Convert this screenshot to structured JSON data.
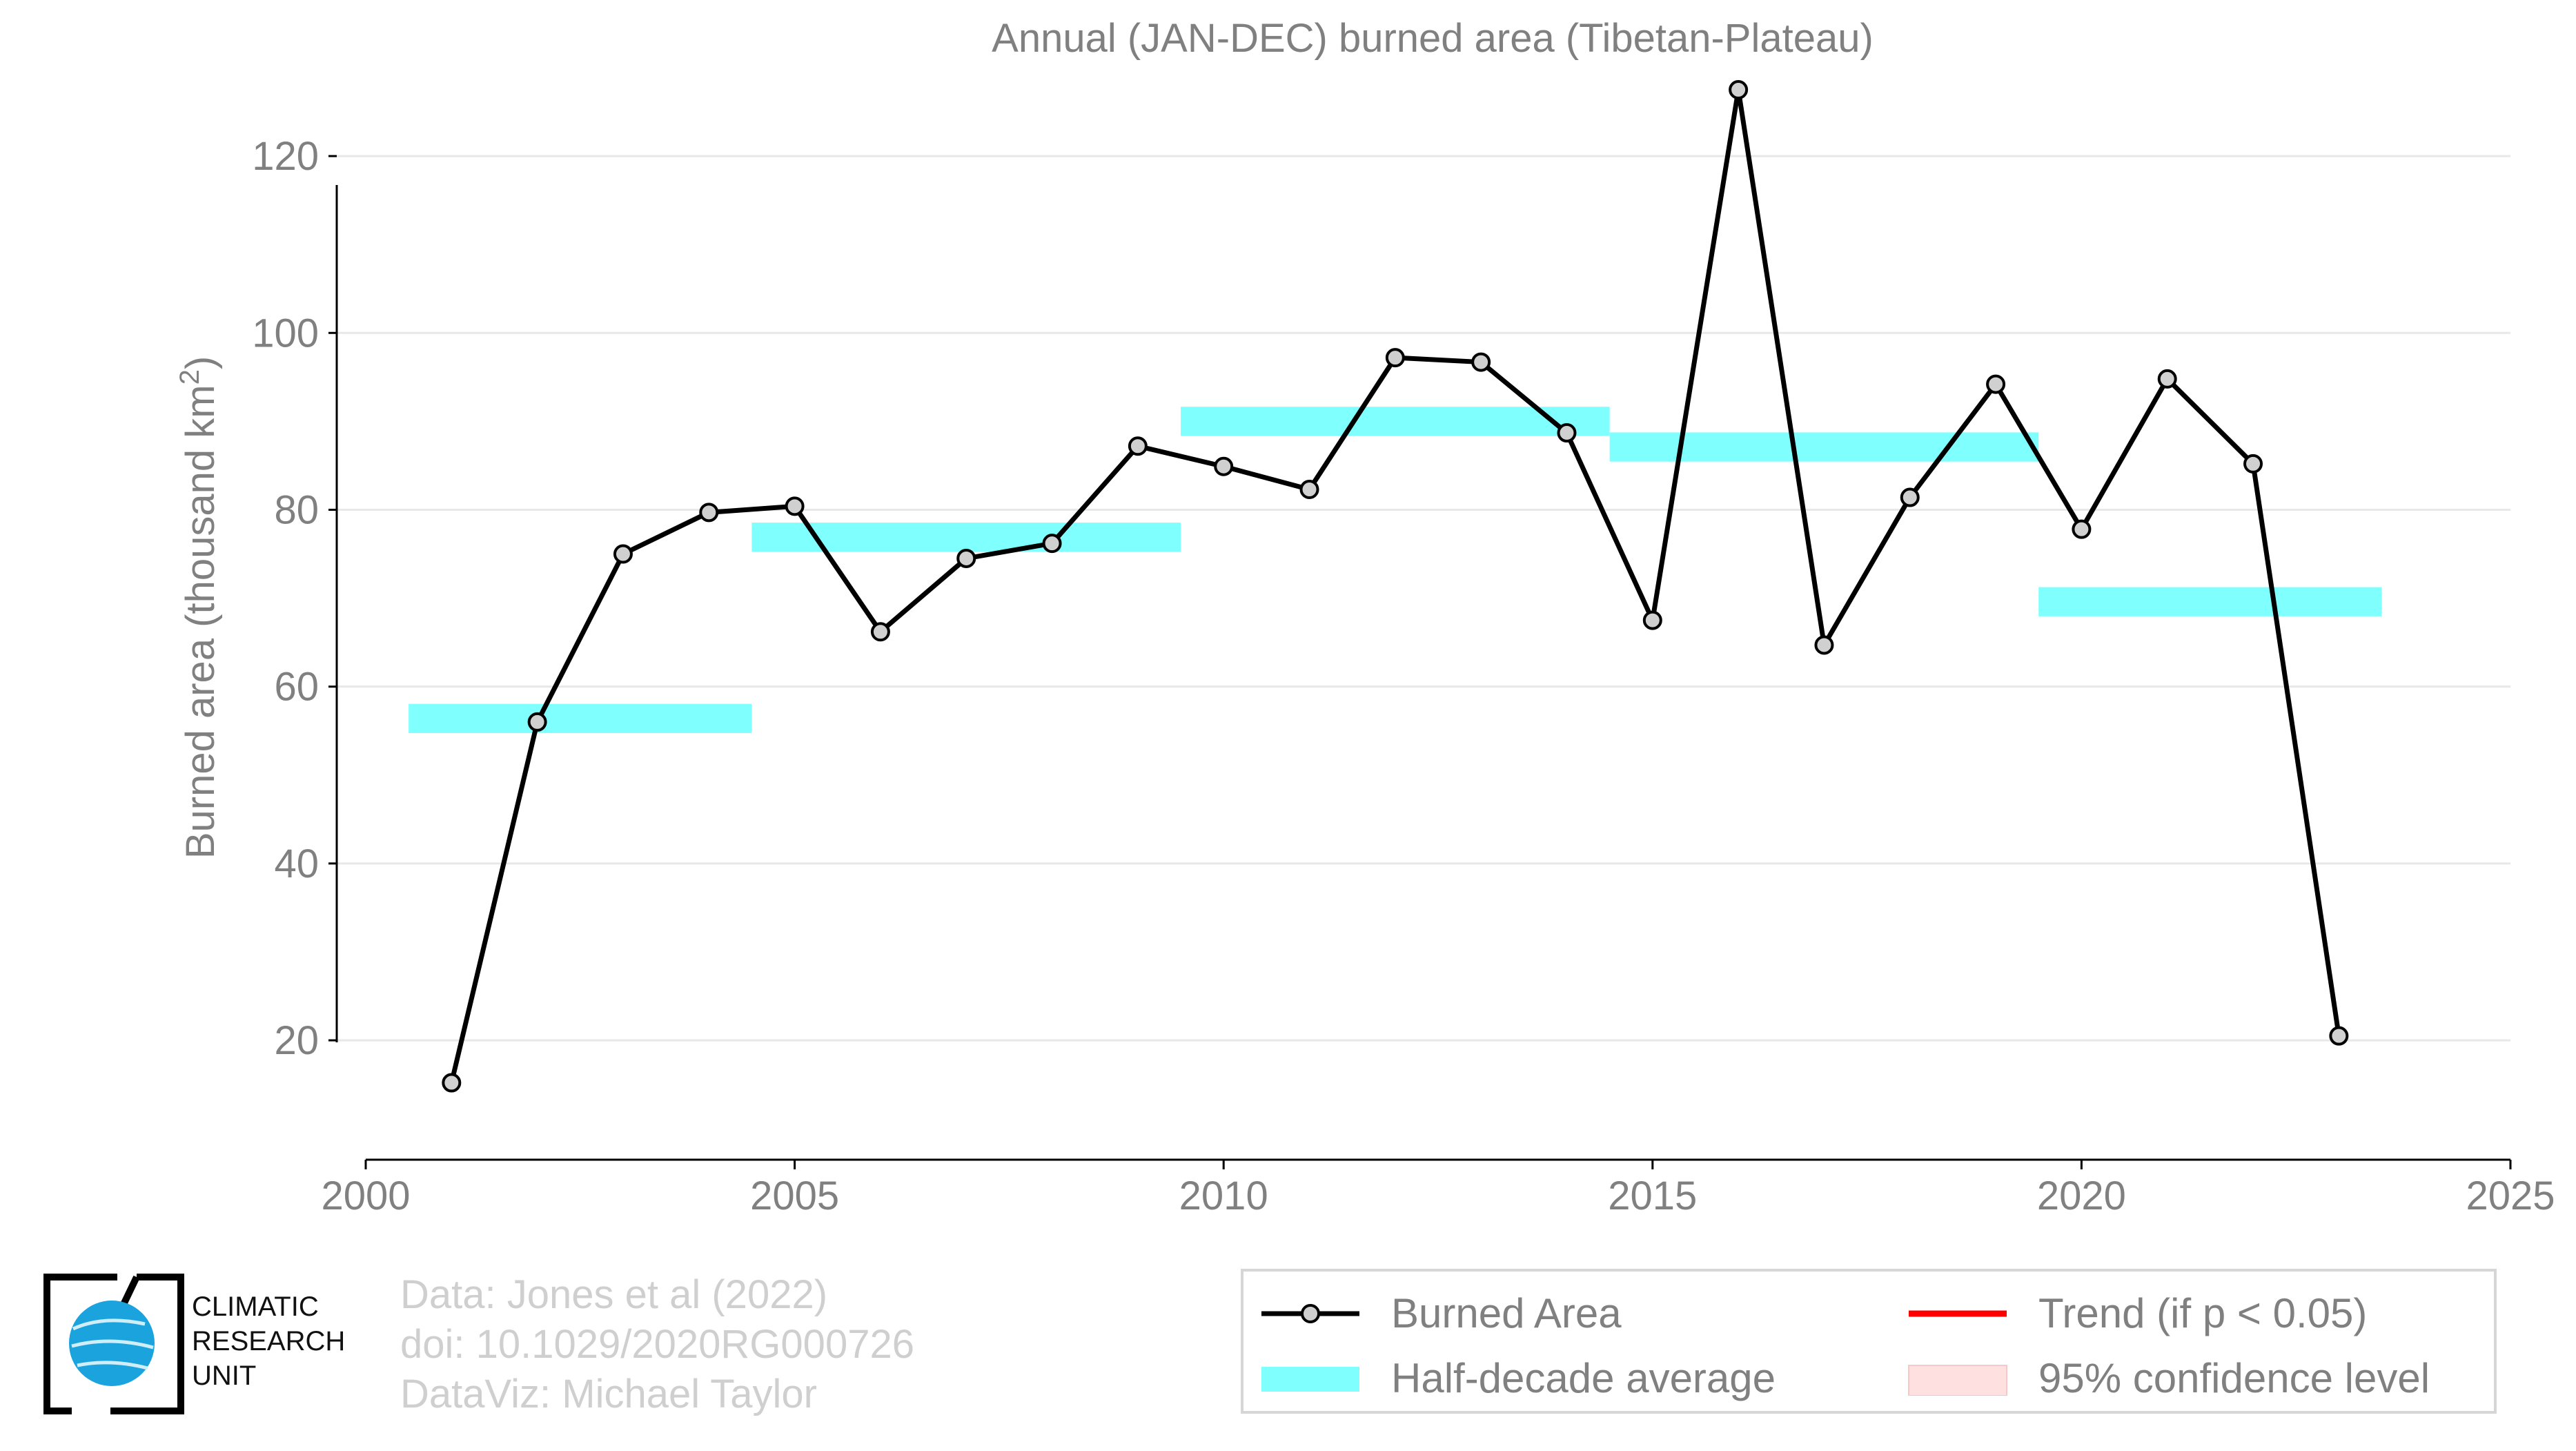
{
  "chart_data": {
    "type": "line",
    "title": "Annual (JAN-DEC) burned area (Tibetan-Plateau)",
    "ylabel_prefix": "Burned area (thousand km",
    "ylabel_sup": "2",
    "ylabel_suffix": ")",
    "xlim": [
      2000,
      2025
    ],
    "ylim": [
      6.5,
      130
    ],
    "xticks": [
      2000,
      2005,
      2010,
      2015,
      2020,
      2025
    ],
    "yticks": [
      20,
      40,
      60,
      80,
      100,
      120
    ],
    "grid": "horizontal",
    "legend_placement": "bottom-right",
    "series": [
      {
        "name": "Burned Area",
        "color": "#000000",
        "marker_color": "#d0d0d0",
        "x": [
          2001,
          2002,
          2003,
          2004,
          2005,
          2006,
          2007,
          2008,
          2009,
          2010,
          2011,
          2012,
          2013,
          2014,
          2015,
          2016,
          2017,
          2018,
          2019,
          2020,
          2021,
          2022,
          2023
        ],
        "y": [
          15.2,
          56.0,
          75.0,
          79.7,
          80.4,
          66.2,
          74.5,
          76.2,
          87.2,
          84.9,
          82.3,
          97.2,
          96.7,
          88.7,
          67.5,
          127.5,
          64.7,
          81.4,
          94.2,
          77.8,
          94.8,
          85.2,
          20.5
        ]
      }
    ],
    "half_decade_averages": [
      {
        "x0": 2000.5,
        "x1": 2004.5,
        "y": 56.4
      },
      {
        "x0": 2004.5,
        "x1": 2009.5,
        "y": 76.9
      },
      {
        "x0": 2009.5,
        "x1": 2014.5,
        "y": 90.0
      },
      {
        "x0": 2014.5,
        "x1": 2019.5,
        "y": 87.1
      },
      {
        "x0": 2019.5,
        "x1": 2023.5,
        "y": 69.6
      }
    ],
    "band_color": "#80ffff",
    "legend": [
      {
        "label": "Burned Area",
        "kind": "line-marker",
        "color": "#000000"
      },
      {
        "label": "Trend (if p < 0.05)",
        "kind": "line",
        "color": "#ff0000"
      },
      {
        "label": "Half-decade average",
        "kind": "band",
        "color": "#80ffff"
      },
      {
        "label": "95% confidence level",
        "kind": "band",
        "color": "#ffe0e0"
      }
    ]
  },
  "logo": {
    "lines": [
      "CLIMATIC",
      "RESEARCH",
      "UNIT"
    ]
  },
  "footnote": {
    "line1": "Data: Jones et al (2022)",
    "line2": "doi: 10.1029/2020RG000726",
    "line3": "DataViz: Michael Taylor"
  }
}
